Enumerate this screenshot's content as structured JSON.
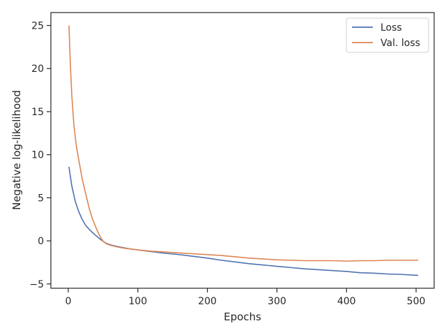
{
  "chart_data": {
    "type": "line",
    "title": "",
    "xlabel": "Epochs",
    "ylabel": "Negative log-likelihood",
    "xlim": [
      -25,
      526
    ],
    "ylim": [
      -5.5,
      26.5
    ],
    "xticks": [
      0,
      100,
      200,
      300,
      400,
      500
    ],
    "yticks": [
      -5,
      0,
      5,
      10,
      15,
      20,
      25
    ],
    "xtick_labels": [
      "0",
      "100",
      "200",
      "300",
      "400",
      "500"
    ],
    "ytick_labels": [
      "−5",
      "0",
      "5",
      "10",
      "15",
      "20",
      "25"
    ],
    "grid": false,
    "legend_position": "top-right",
    "series": [
      {
        "name": "Loss",
        "color": "#4C72B0",
        "x": [
          1,
          5,
          10,
          15,
          20,
          25,
          30,
          35,
          40,
          45,
          50,
          55,
          60,
          70,
          80,
          90,
          100,
          120,
          140,
          160,
          180,
          200,
          220,
          240,
          260,
          280,
          300,
          320,
          340,
          360,
          380,
          400,
          420,
          440,
          460,
          480,
          500,
          503
        ],
        "y": [
          8.6,
          6.4,
          4.6,
          3.4,
          2.5,
          1.8,
          1.35,
          0.95,
          0.6,
          0.25,
          -0.05,
          -0.3,
          -0.45,
          -0.65,
          -0.8,
          -0.95,
          -1.05,
          -1.25,
          -1.45,
          -1.6,
          -1.8,
          -2.0,
          -2.25,
          -2.45,
          -2.65,
          -2.8,
          -2.95,
          -3.1,
          -3.25,
          -3.35,
          -3.45,
          -3.55,
          -3.7,
          -3.75,
          -3.85,
          -3.9,
          -4.0,
          -4.0
        ]
      },
      {
        "name": "Val. loss",
        "color": "#DD8452",
        "x": [
          1,
          3,
          5,
          8,
          12,
          16,
          20,
          25,
          30,
          35,
          40,
          45,
          50,
          55,
          60,
          70,
          80,
          90,
          100,
          120,
          140,
          160,
          180,
          200,
          220,
          240,
          260,
          280,
          300,
          320,
          340,
          360,
          380,
          400,
          420,
          440,
          460,
          480,
          500,
          503
        ],
        "y": [
          25.0,
          20.5,
          17.0,
          13.5,
          10.8,
          9.0,
          7.2,
          5.5,
          3.8,
          2.5,
          1.5,
          0.6,
          -0.05,
          -0.35,
          -0.5,
          -0.7,
          -0.85,
          -0.95,
          -1.05,
          -1.2,
          -1.3,
          -1.4,
          -1.5,
          -1.6,
          -1.7,
          -1.85,
          -2.0,
          -2.1,
          -2.2,
          -2.25,
          -2.3,
          -2.3,
          -2.3,
          -2.35,
          -2.3,
          -2.3,
          -2.25,
          -2.25,
          -2.25,
          -2.25
        ]
      }
    ]
  }
}
